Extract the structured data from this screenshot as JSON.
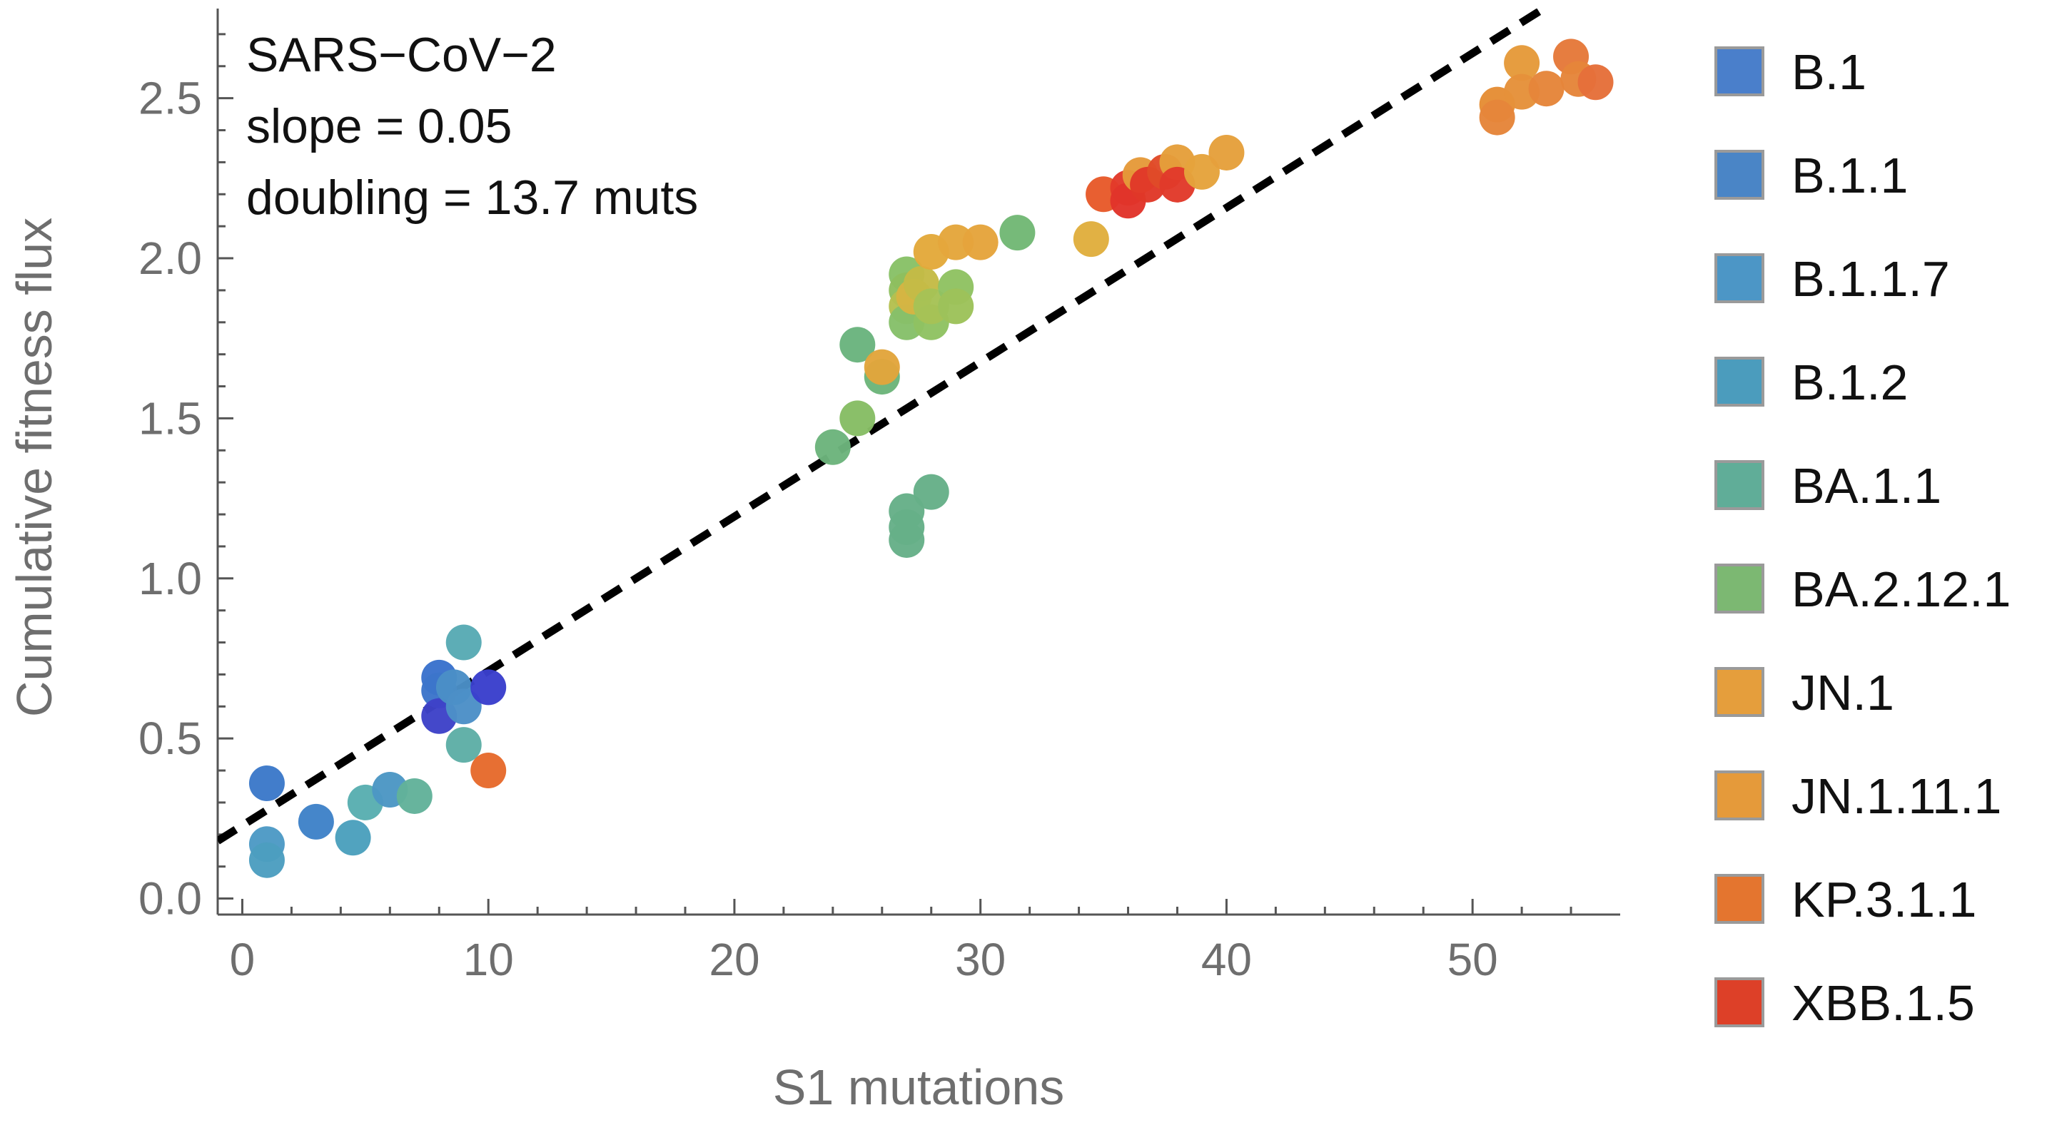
{
  "chart_data": {
    "type": "scatter",
    "title": "",
    "xlabel": "S1 mutations",
    "ylabel": "Cumulative fitness flux",
    "xlim": [
      -1,
      56
    ],
    "ylim": [
      -0.05,
      2.78
    ],
    "x_ticks": [
      0,
      10,
      20,
      30,
      40,
      50
    ],
    "x_tick_labels": [
      "0",
      "10",
      "20",
      "30",
      "40",
      "50"
    ],
    "y_ticks": [
      0,
      0.5,
      1,
      1.5,
      2,
      2.5
    ],
    "y_tick_labels": [
      "0.0",
      "0.5",
      "1.0",
      "1.5",
      "2.0",
      "2.5"
    ],
    "grid": false,
    "legend_position": "right",
    "annotation_lines": [
      "SARS−CoV−2",
      "slope = 0.05",
      "doubling = 13.7 muts"
    ],
    "fit_line": {
      "style": "dashed",
      "color": "#000000",
      "x": [
        -1,
        56
      ],
      "y": [
        0.18,
        2.93
      ]
    },
    "legend": [
      {
        "name": "B.1",
        "color": "#4a7fcb"
      },
      {
        "name": "B.1.1",
        "color": "#4a85c6"
      },
      {
        "name": "B.1.1.7",
        "color": "#4c96c6"
      },
      {
        "name": "B.1.2",
        "color": "#4b9cbd"
      },
      {
        "name": "BA.1.1",
        "color": "#60ad98"
      },
      {
        "name": "BA.2.12.1",
        "color": "#7cb872"
      },
      {
        "name": "JN.1",
        "color": "#e59e3c"
      },
      {
        "name": "JN.1.11.1",
        "color": "#e59a3a"
      },
      {
        "name": "KP.3.1.1",
        "color": "#e4752f"
      },
      {
        "name": "XBB.1.5",
        "color": "#dd4028"
      }
    ],
    "points": [
      {
        "x": 1,
        "y": 0.36,
        "color": "#3c79c9"
      },
      {
        "x": 1,
        "y": 0.17,
        "color": "#4d9ac5"
      },
      {
        "x": 1,
        "y": 0.12,
        "color": "#4c9ec0"
      },
      {
        "x": 3,
        "y": 0.24,
        "color": "#3f82c8"
      },
      {
        "x": 4.5,
        "y": 0.19,
        "color": "#4ba0bd"
      },
      {
        "x": 5,
        "y": 0.3,
        "color": "#59aeb1"
      },
      {
        "x": 6,
        "y": 0.34,
        "color": "#4c97c4"
      },
      {
        "x": 7,
        "y": 0.32,
        "color": "#62b29a"
      },
      {
        "x": 8,
        "y": 0.69,
        "color": "#3a72cc"
      },
      {
        "x": 8,
        "y": 0.65,
        "color": "#3c75ca"
      },
      {
        "x": 8,
        "y": 0.57,
        "color": "#3e42c8"
      },
      {
        "x": 8.6,
        "y": 0.66,
        "color": "#4a8ec6"
      },
      {
        "x": 9,
        "y": 0.8,
        "color": "#58aab4"
      },
      {
        "x": 9,
        "y": 0.6,
        "color": "#4c90c7"
      },
      {
        "x": 9,
        "y": 0.48,
        "color": "#5eaea6"
      },
      {
        "x": 10,
        "y": 0.66,
        "color": "#3a3fcc"
      },
      {
        "x": 10,
        "y": 0.4,
        "color": "#e66a2c"
      },
      {
        "x": 24,
        "y": 1.41,
        "color": "#6cb47c"
      },
      {
        "x": 25,
        "y": 1.73,
        "color": "#6ab47e"
      },
      {
        "x": 25,
        "y": 1.5,
        "color": "#86bd64"
      },
      {
        "x": 26,
        "y": 1.63,
        "color": "#6cb57a"
      },
      {
        "x": 26,
        "y": 1.66,
        "color": "#e2a53c"
      },
      {
        "x": 27,
        "y": 1.21,
        "color": "#66b088"
      },
      {
        "x": 27,
        "y": 1.16,
        "color": "#66b088"
      },
      {
        "x": 27,
        "y": 1.12,
        "color": "#66b088"
      },
      {
        "x": 28,
        "y": 1.27,
        "color": "#66b088"
      },
      {
        "x": 27,
        "y": 1.95,
        "color": "#88c167"
      },
      {
        "x": 27,
        "y": 1.9,
        "color": "#8ebf5f"
      },
      {
        "x": 27,
        "y": 1.85,
        "color": "#b5c050"
      },
      {
        "x": 27,
        "y": 1.8,
        "color": "#86c06a"
      },
      {
        "x": 27.3,
        "y": 1.88,
        "color": "#d6b543"
      },
      {
        "x": 27.6,
        "y": 1.92,
        "color": "#c4bb46"
      },
      {
        "x": 28,
        "y": 1.8,
        "color": "#8fc262"
      },
      {
        "x": 28,
        "y": 1.85,
        "color": "#a6c256"
      },
      {
        "x": 28,
        "y": 2.02,
        "color": "#e3a93b"
      },
      {
        "x": 29,
        "y": 1.91,
        "color": "#8fc262"
      },
      {
        "x": 29,
        "y": 1.85,
        "color": "#9dc25a"
      },
      {
        "x": 29,
        "y": 2.05,
        "color": "#e4a63c"
      },
      {
        "x": 30,
        "y": 2.05,
        "color": "#e5a43c"
      },
      {
        "x": 31.5,
        "y": 2.08,
        "color": "#72b875"
      },
      {
        "x": 34.5,
        "y": 2.06,
        "color": "#e0ae3e"
      },
      {
        "x": 35,
        "y": 2.2,
        "color": "#e75a2a"
      },
      {
        "x": 36,
        "y": 2.22,
        "color": "#e23a2a"
      },
      {
        "x": 36,
        "y": 2.18,
        "color": "#e1342a"
      },
      {
        "x": 36.5,
        "y": 2.26,
        "color": "#e59a3a"
      },
      {
        "x": 36.8,
        "y": 2.23,
        "color": "#e03828"
      },
      {
        "x": 37.5,
        "y": 2.27,
        "color": "#e04a28"
      },
      {
        "x": 38,
        "y": 2.3,
        "color": "#e59f3b"
      },
      {
        "x": 38,
        "y": 2.23,
        "color": "#e13a2a"
      },
      {
        "x": 39,
        "y": 2.27,
        "color": "#e5a33c"
      },
      {
        "x": 40,
        "y": 2.33,
        "color": "#e5a03c"
      },
      {
        "x": 51,
        "y": 2.48,
        "color": "#e58d35"
      },
      {
        "x": 51,
        "y": 2.44,
        "color": "#e5853a"
      },
      {
        "x": 52,
        "y": 2.61,
        "color": "#e59a3a"
      },
      {
        "x": 52,
        "y": 2.52,
        "color": "#e5913a"
      },
      {
        "x": 53,
        "y": 2.53,
        "color": "#e5853a"
      },
      {
        "x": 54,
        "y": 2.63,
        "color": "#e5793a"
      },
      {
        "x": 54.3,
        "y": 2.56,
        "color": "#e5853a"
      },
      {
        "x": 55,
        "y": 2.55,
        "color": "#e5703a"
      }
    ]
  }
}
